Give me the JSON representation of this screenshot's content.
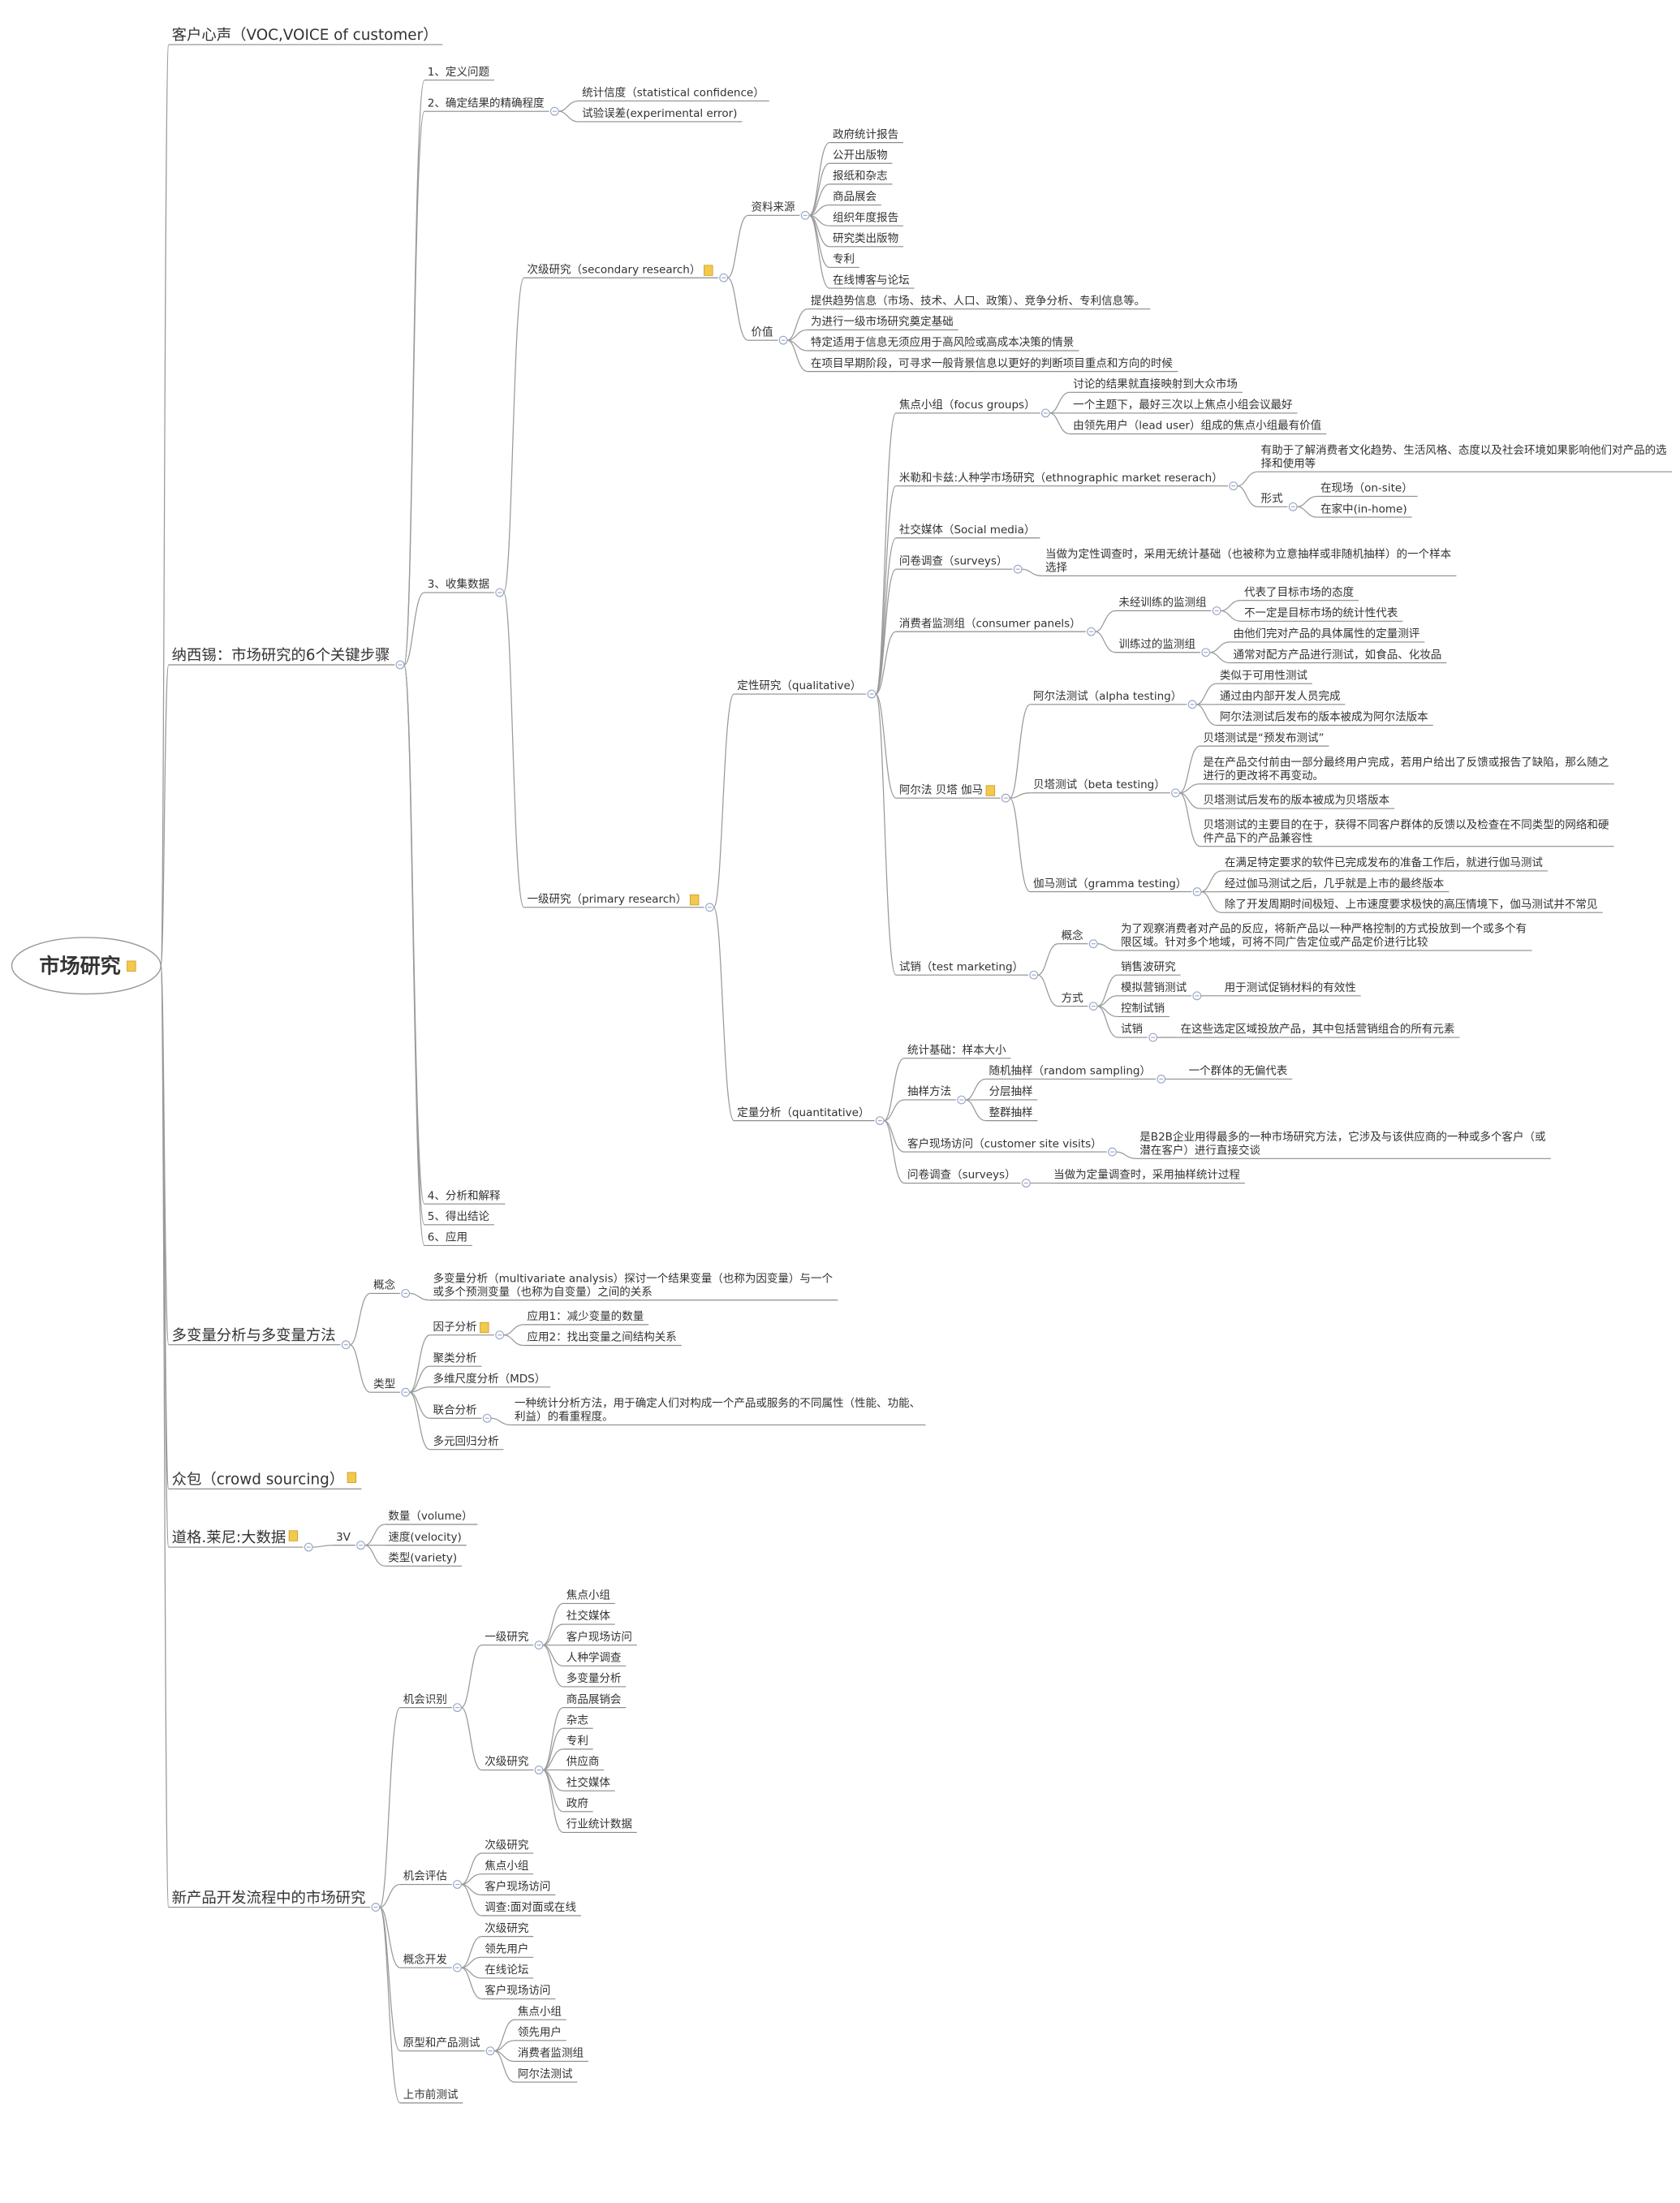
{
  "root": {
    "label": "市场研究",
    "note": true,
    "children": [
      {
        "label": "客户心声（VOC,VOICE of customer）"
      },
      {
        "label": "纳西锡：市场研究的6个关键步骤",
        "children": [
          {
            "label": "1、定义问题"
          },
          {
            "label": "2、确定结果的精确程度",
            "children": [
              {
                "label": "统计信度（statistical confidence）"
              },
              {
                "label": "试验误差(experimental error)"
              }
            ]
          },
          {
            "label": "3、收集数据",
            "children": [
              {
                "label": "次级研究（secondary research）",
                "note": true,
                "children": [
                  {
                    "label": "资料来源",
                    "children": [
                      {
                        "label": "政府统计报告"
                      },
                      {
                        "label": "公开出版物"
                      },
                      {
                        "label": "报纸和杂志"
                      },
                      {
                        "label": "商品展会"
                      },
                      {
                        "label": "组织年度报告"
                      },
                      {
                        "label": "研究类出版物"
                      },
                      {
                        "label": "专利"
                      },
                      {
                        "label": "在线博客与论坛"
                      }
                    ]
                  },
                  {
                    "label": "价值",
                    "children": [
                      {
                        "label": "提供趋势信息（市场、技术、人口、政策）、竞争分析、专利信息等。"
                      },
                      {
                        "label": "为进行一级市场研究奠定基础"
                      },
                      {
                        "label": "特定适用于信息无须应用于高风险或高成本决策的情景"
                      },
                      {
                        "label": "在项目早期阶段，可寻求一般背景信息以更好的判断项目重点和方向的时候"
                      }
                    ]
                  }
                ]
              },
              {
                "label": "一级研究（primary research）",
                "note": true,
                "children": [
                  {
                    "label": "定性研究（qualitative）",
                    "children": [
                      {
                        "label": "焦点小组（focus groups）",
                        "children": [
                          {
                            "label": "讨论的结果就直接映射到大众市场"
                          },
                          {
                            "label": "一个主题下，最好三次以上焦点小组会议最好"
                          },
                          {
                            "label": "由领先用户（lead user）组成的焦点小组最有价值"
                          }
                        ]
                      },
                      {
                        "label": "米勒和卡兹:人种学市场研究（ethnographic market reserach）",
                        "children": [
                          {
                            "label": "有助于了解消费者文化趋势、生活风格、态度以及社会环境如果影响他们对产品的选择和使用等"
                          },
                          {
                            "label": "形式",
                            "children": [
                              {
                                "label": "在现场（on-site）"
                              },
                              {
                                "label": "在家中(in-home)"
                              }
                            ]
                          }
                        ]
                      },
                      {
                        "label": "社交媒体（Social media）"
                      },
                      {
                        "label": "问卷调查（surveys）",
                        "children": [
                          {
                            "label": "当做为定性调查时，采用无统计基础（也被称为立意抽样或非随机抽样）的一个样本选择"
                          }
                        ]
                      },
                      {
                        "label": "消费者监测组（consumer panels）",
                        "children": [
                          {
                            "label": "未经训练的监测组",
                            "children": [
                              {
                                "label": "代表了目标市场的态度"
                              },
                              {
                                "label": "不一定是目标市场的统计性代表"
                              }
                            ]
                          },
                          {
                            "label": "训练过的监测组",
                            "children": [
                              {
                                "label": "由他们完对产品的具体属性的定量测评"
                              },
                              {
                                "label": "通常对配方产品进行测试，如食品、化妆品"
                              }
                            ]
                          }
                        ]
                      },
                      {
                        "label": "阿尔法 贝塔 伽马",
                        "note": true,
                        "children": [
                          {
                            "label": "阿尔法测试（alpha testing）",
                            "children": [
                              {
                                "label": "类似于可用性测试"
                              },
                              {
                                "label": "通过由内部开发人员完成"
                              },
                              {
                                "label": "阿尔法测试后发布的版本被成为阿尔法版本"
                              }
                            ]
                          },
                          {
                            "label": "贝塔测试（beta testing）",
                            "children": [
                              {
                                "label": "贝塔测试是“预发布测试”"
                              },
                              {
                                "label": "是在产品交付前由一部分最终用户完成，若用户给出了反馈或报告了缺陷，那么随之进行的更改将不再变动。"
                              },
                              {
                                "label": "贝塔测试后发布的版本被成为贝塔版本"
                              },
                              {
                                "label": "贝塔测试的主要目的在于，获得不同客户群体的反馈以及检查在不同类型的网络和硬件产品下的产品兼容性"
                              }
                            ]
                          },
                          {
                            "label": "伽马测试（gramma testing）",
                            "children": [
                              {
                                "label": "在满足特定要求的软件已完成发布的准备工作后，就进行伽马测试"
                              },
                              {
                                "label": "经过伽马测试之后，几乎就是上市的最终版本"
                              },
                              {
                                "label": "除了开发周期时间极短、上市速度要求极快的高压情境下，伽马测试并不常见"
                              }
                            ]
                          }
                        ]
                      },
                      {
                        "label": "试销（test marketing）",
                        "children": [
                          {
                            "label": "概念",
                            "children": [
                              {
                                "label": "为了观察消费者对产品的反应，将新产品以一种严格控制的方式投放到一个或多个有限区域。针对多个地域，可将不同广告定位或产品定价进行比较"
                              }
                            ]
                          },
                          {
                            "label": "方式",
                            "children": [
                              {
                                "label": "销售波研究"
                              },
                              {
                                "label": "模拟营销测试",
                                "children": [
                                  {
                                    "label": "用于测试促销材料的有效性"
                                  }
                                ]
                              },
                              {
                                "label": "控制试销"
                              },
                              {
                                "label": "试销",
                                "children": [
                                  {
                                    "label": "在这些选定区域投放产品，其中包括营销组合的所有元素"
                                  }
                                ]
                              }
                            ]
                          }
                        ]
                      }
                    ]
                  },
                  {
                    "label": "定量分析（quantitative）",
                    "children": [
                      {
                        "label": "统计基础：样本大小"
                      },
                      {
                        "label": "抽样方法",
                        "children": [
                          {
                            "label": "随机抽样（random sampling）",
                            "children": [
                              {
                                "label": "一个群体的无偏代表"
                              }
                            ]
                          },
                          {
                            "label": "分层抽样"
                          },
                          {
                            "label": "整群抽样"
                          }
                        ]
                      },
                      {
                        "label": "客户现场访问（customer site visits）",
                        "children": [
                          {
                            "label": "是B2B企业用得最多的一种市场研究方法，它涉及与该供应商的一种或多个客户（或潜在客户）进行直接交谈"
                          }
                        ]
                      },
                      {
                        "label": "问卷调查（surveys）",
                        "children": [
                          {
                            "label": "当做为定量调查时，采用抽样统计过程"
                          }
                        ]
                      }
                    ]
                  }
                ]
              }
            ]
          },
          {
            "label": "4、分析和解释"
          },
          {
            "label": "5、得出结论"
          },
          {
            "label": "6、应用"
          }
        ]
      },
      {
        "label": "多变量分析与多变量方法",
        "children": [
          {
            "label": "概念",
            "children": [
              {
                "label": "多变量分析（multivariate analysis）探讨一个结果变量（也称为因变量）与一个或多个预测变量（也称为自变量）之间的关系"
              }
            ]
          },
          {
            "label": "类型",
            "children": [
              {
                "label": "因子分析",
                "note": true,
                "children": [
                  {
                    "label": "应用1：减少变量的数量"
                  },
                  {
                    "label": "应用2：找出变量之间结构关系"
                  }
                ]
              },
              {
                "label": "聚类分析"
              },
              {
                "label": "多维尺度分析（MDS）"
              },
              {
                "label": "联合分析",
                "children": [
                  {
                    "label": "一种统计分析方法，用于确定人们对构成一个产品或服务的不同属性（性能、功能、利益）的看重程度。"
                  }
                ]
              },
              {
                "label": "多元回归分析"
              }
            ]
          }
        ]
      },
      {
        "label": "众包（crowd sourcing）",
        "note": true
      },
      {
        "label": "道格.莱尼:大数据",
        "note": true,
        "children": [
          {
            "label": "3V",
            "children": [
              {
                "label": "数量（volume）"
              },
              {
                "label": "速度(velocity)"
              },
              {
                "label": "类型(variety)"
              }
            ]
          }
        ]
      },
      {
        "label": "新产品开发流程中的市场研究",
        "children": [
          {
            "label": "机会识别",
            "children": [
              {
                "label": "一级研究",
                "children": [
                  {
                    "label": "焦点小组"
                  },
                  {
                    "label": "社交媒体"
                  },
                  {
                    "label": "客户现场访问"
                  },
                  {
                    "label": "人种学调查"
                  },
                  {
                    "label": "多变量分析"
                  }
                ]
              },
              {
                "label": "次级研究",
                "children": [
                  {
                    "label": "商品展销会"
                  },
                  {
                    "label": "杂志"
                  },
                  {
                    "label": "专利"
                  },
                  {
                    "label": "供应商"
                  },
                  {
                    "label": "社交媒体"
                  },
                  {
                    "label": "政府"
                  },
                  {
                    "label": "行业统计数据"
                  }
                ]
              }
            ]
          },
          {
            "label": "机会评估",
            "children": [
              {
                "label": "次级研究"
              },
              {
                "label": "焦点小组"
              },
              {
                "label": "客户现场访问"
              },
              {
                "label": "调查:面对面或在线"
              }
            ]
          },
          {
            "label": "概念开发",
            "children": [
              {
                "label": "次级研究"
              },
              {
                "label": "领先用户"
              },
              {
                "label": "在线论坛"
              },
              {
                "label": "客户现场访问"
              }
            ]
          },
          {
            "label": "原型和产品测试",
            "children": [
              {
                "label": "焦点小组"
              },
              {
                "label": "领先用户"
              },
              {
                "label": "消费者监测组"
              },
              {
                "label": "阿尔法测试"
              }
            ]
          },
          {
            "label": "上市前测试"
          }
        ]
      }
    ]
  }
}
